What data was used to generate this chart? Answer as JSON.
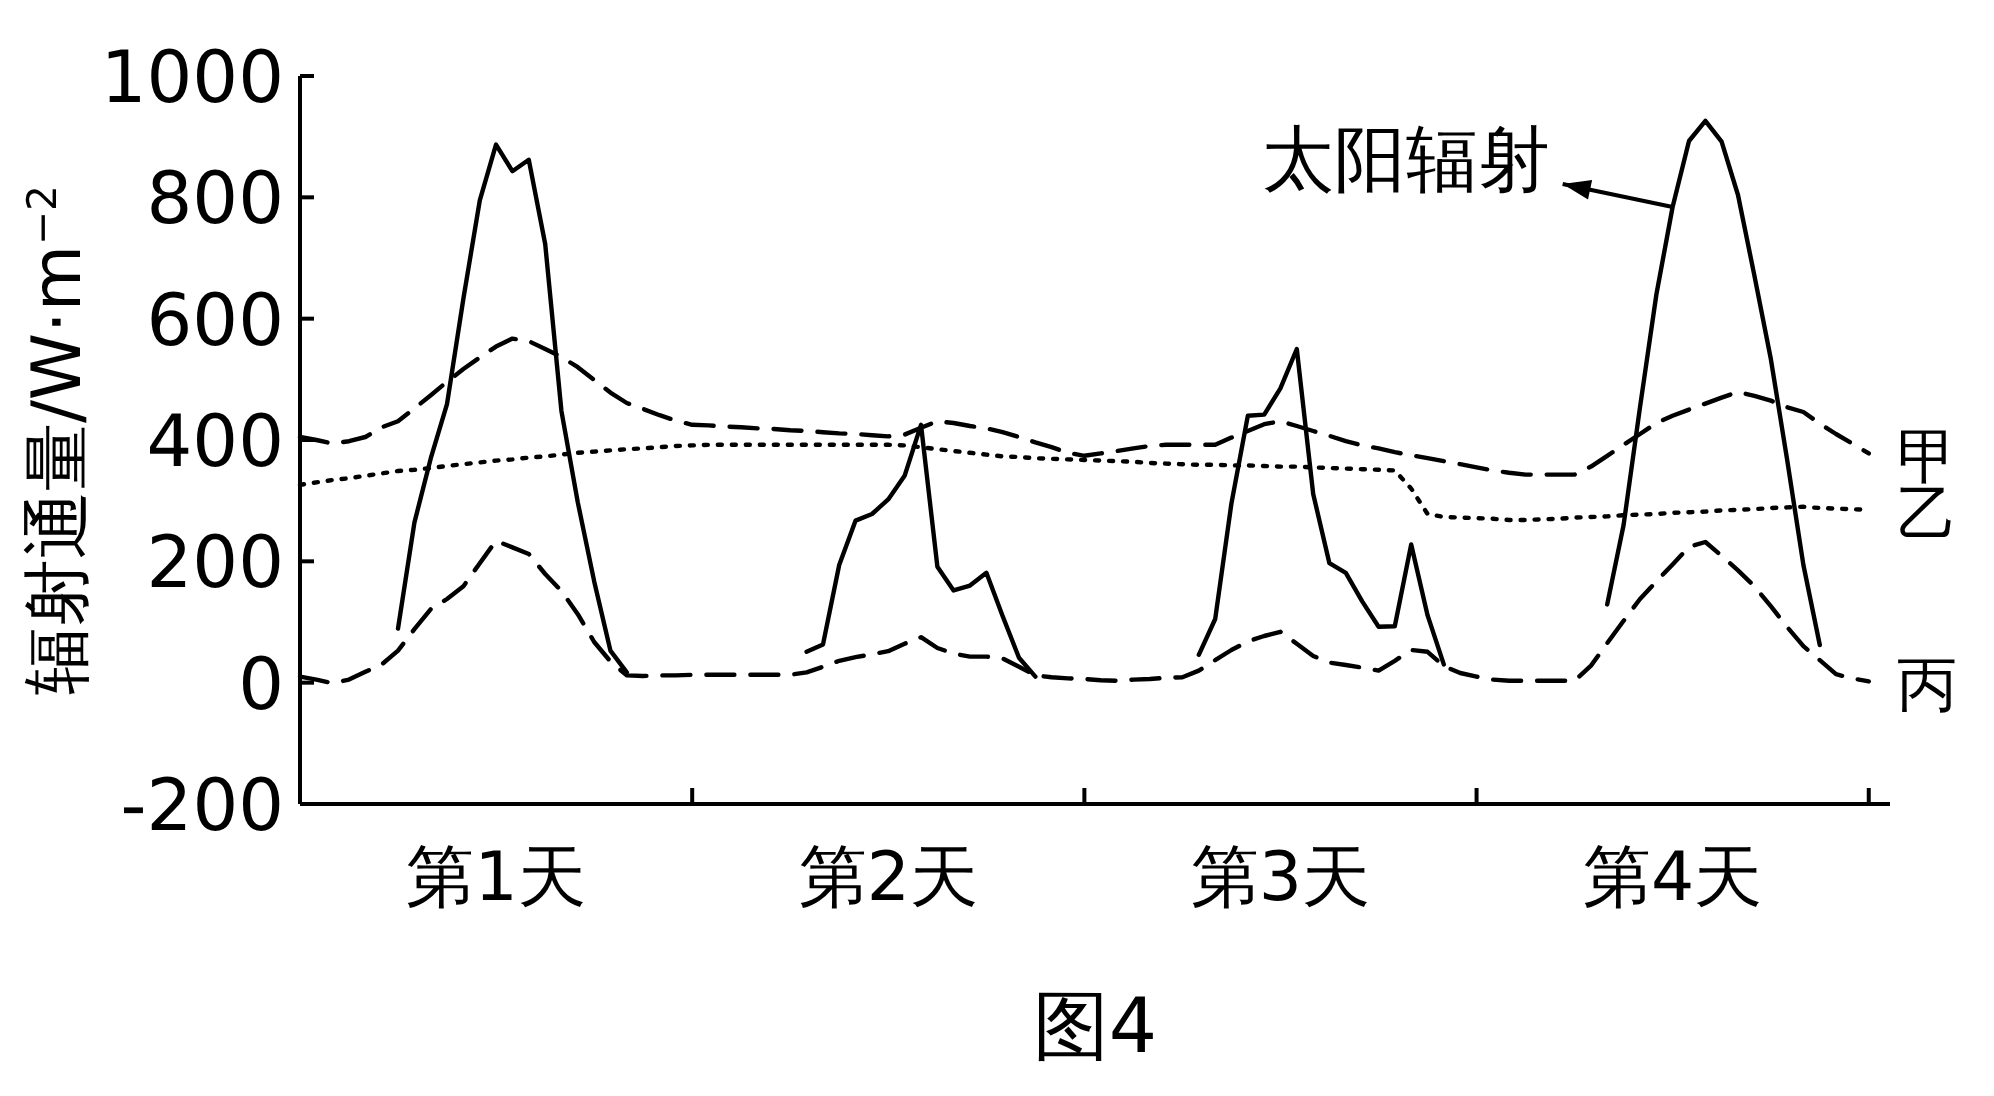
{
  "chart_data": {
    "type": "line",
    "ylabel": "辐射通量/W·m$^{−2}$",
    "ylim": [
      -200,
      1000
    ],
    "yticks": [
      -200,
      0,
      200,
      400,
      600,
      800,
      1000
    ],
    "categories": [
      null,
      null,
      null,
      null,
      null,
      null,
      null,
      null,
      null,
      null,
      null,
      null,
      "第1天",
      null,
      null,
      null,
      null,
      null,
      null,
      null,
      null,
      null,
      null,
      null,
      null,
      null,
      null,
      null,
      null,
      null,
      null,
      null,
      null,
      null,
      null,
      null,
      "第2天",
      null,
      null,
      null,
      null,
      null,
      null,
      null,
      null,
      null,
      null,
      null,
      null,
      null,
      null,
      null,
      null,
      null,
      null,
      null,
      null,
      null,
      null,
      null,
      "第3天",
      null,
      null,
      null,
      null,
      null,
      null,
      null,
      null,
      null,
      null,
      null,
      null,
      null,
      null,
      null,
      null,
      null,
      null,
      null,
      null,
      null,
      null,
      null,
      "第4天",
      null,
      null,
      null,
      null,
      null,
      null,
      null,
      null,
      null,
      null,
      null,
      null
    ],
    "grid": false,
    "marker": "none",
    "annotations": [
      "图4",
      {
        "text": "太阳辐射",
        "x": "第4天",
        "y": 784
      }
    ],
    "series": [
      {
        "color": "#000000",
        "line_style": "solid",
        "values": [
          null,
          null,
          null,
          null,
          null,
          null,
          89,
          264,
          370,
          459,
          633,
          795,
          887,
          843,
          862,
          723,
          448,
          297,
          167,
          53,
          17,
          null,
          null,
          null,
          null,
          null,
          null,
          null,
          null,
          null,
          null,
          51,
          63,
          194,
          267,
          278,
          302,
          341,
          425,
          191,
          152,
          160,
          181,
          110,
          41,
          10,
          null,
          null,
          null,
          null,
          null,
          null,
          null,
          null,
          null,
          46,
          105,
          295,
          440,
          442,
          485,
          550,
          311,
          197,
          181,
          134,
          92,
          93,
          228,
          111,
          30,
          null,
          null,
          null,
          null,
          null,
          null,
          null,
          null,
          null,
          129,
          260,
          454,
          640,
          784,
          893,
          926,
          892,
          804,
          671,
          534,
          369,
          194,
          62,
          null,
          null,
          null
        ]
      },
      {
        "name": "甲",
        "color": "#000000",
        "line_style": "dashed",
        "values": [
          405,
          400,
          394,
          398,
          405,
          421,
          431,
          452,
          474,
          496,
          517,
          536,
          554,
          567,
          563,
          550,
          537,
          520,
          499,
          478,
          461,
          451,
          441,
          432,
          425,
          424,
          422,
          421,
          419,
          418,
          416,
          415,
          413,
          411,
          410,
          408,
          406,
          409,
          420,
          431,
          428,
          423,
          419,
          413,
          405,
          396,
          388,
          379,
          374,
          378,
          382,
          386,
          390,
          392,
          392,
          392,
          392,
          404,
          415,
          426,
          431,
          423,
          415,
          407,
          398,
          391,
          386,
          380,
          375,
          370,
          365,
          360,
          355,
          350,
          346,
          343,
          343,
          343,
          343,
          356,
          374,
          392,
          410,
          428,
          440,
          450,
          460,
          470,
          479,
          473,
          465,
          454,
          446,
          427,
          410,
          394,
          378
        ]
      },
      {
        "name": "乙",
        "color": "#000000",
        "line_style": "dotted",
        "values": [
          326,
          330,
          334,
          337,
          341,
          345,
          349,
          351,
          354,
          357,
          360,
          363,
          366,
          368,
          371,
          373,
          376,
          379,
          381,
          383,
          385,
          386,
          388,
          390,
          391,
          392,
          392,
          392,
          392,
          392,
          392,
          392,
          392,
          392,
          392,
          392,
          392,
          391,
          388,
          385,
          382,
          379,
          376,
          373,
          372,
          370,
          369,
          368,
          367,
          366,
          365,
          364,
          362,
          361,
          360,
          359,
          359,
          358,
          358,
          357,
          356,
          356,
          355,
          354,
          353,
          352,
          351,
          350,
          320,
          278,
          273,
          272,
          271,
          270,
          268,
          268,
          269,
          270,
          272,
          273,
          274,
          276,
          277,
          278,
          280,
          281,
          282,
          284,
          285,
          286,
          288,
          289,
          290,
          288,
          287,
          286,
          285
        ]
      },
      {
        "name": "丙",
        "color": "#000000",
        "line_style": "dashed",
        "values": [
          10,
          5,
          -1,
          5,
          18,
          30,
          53,
          88,
          121,
          138,
          159,
          197,
          234,
          223,
          212,
          179,
          151,
          113,
          67,
          35,
          12,
          11,
          12,
          12,
          13,
          13,
          13,
          13,
          13,
          13,
          13,
          17,
          26,
          36,
          42,
          47,
          52,
          64,
          75,
          57,
          48,
          43,
          43,
          40,
          26,
          12,
          9,
          7,
          6,
          4,
          3,
          5,
          6,
          8,
          9,
          20,
          37,
          54,
          68,
          77,
          84,
          64,
          44,
          33,
          29,
          25,
          20,
          36,
          54,
          51,
          27,
          16,
          10,
          5,
          3,
          3,
          3,
          3,
          3,
          28,
          65,
          102,
          138,
          167,
          195,
          224,
          232,
          209,
          185,
          159,
          126,
          92,
          60,
          37,
          14,
          7,
          2
        ]
      }
    ]
  }
}
